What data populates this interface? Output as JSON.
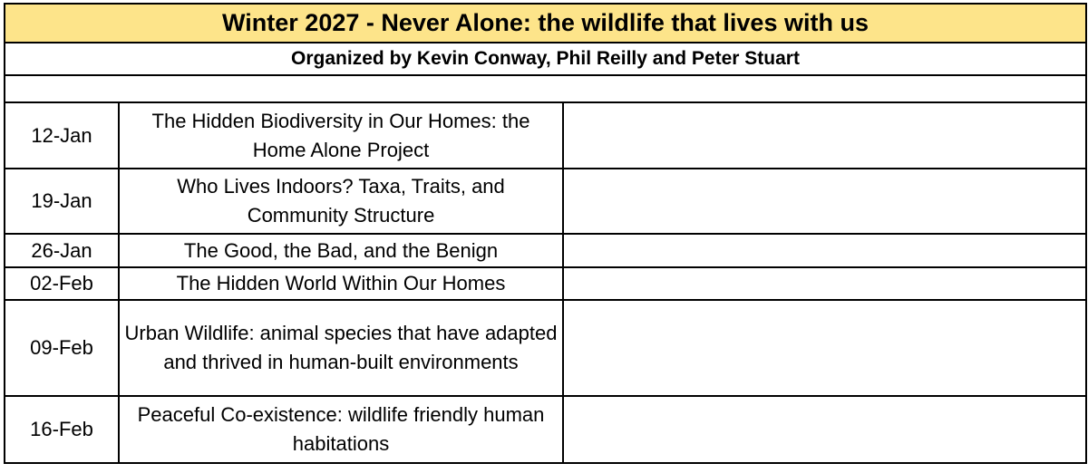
{
  "sheet": {
    "title": "Winter 2027 - Never Alone: the wildlife that lives with us",
    "organizers": "Organized by Kevin Conway, Phil Reilly and Peter Stuart",
    "title_fill_color": "#fde48a",
    "sessions": [
      {
        "date": "12-Jan",
        "topic": "The Hidden Biodiversity in Our Homes: the Home Alone Project",
        "notes": ""
      },
      {
        "date": "19-Jan",
        "topic": "Who Lives Indoors? Taxa, Traits, and Community Structure",
        "notes": ""
      },
      {
        "date": "26-Jan",
        "topic": "The Good, the Bad, and the Benign",
        "notes": ""
      },
      {
        "date": "02-Feb",
        "topic": "The Hidden World Within Our Homes",
        "notes": ""
      },
      {
        "date": "09-Feb",
        "topic": "Urban Wildlife: animal species that have adapted and thrived in human-built environments",
        "notes": ""
      },
      {
        "date": "16-Feb",
        "topic": "Peaceful Co-existence: wildlife friendly human habitations",
        "notes": ""
      }
    ]
  }
}
